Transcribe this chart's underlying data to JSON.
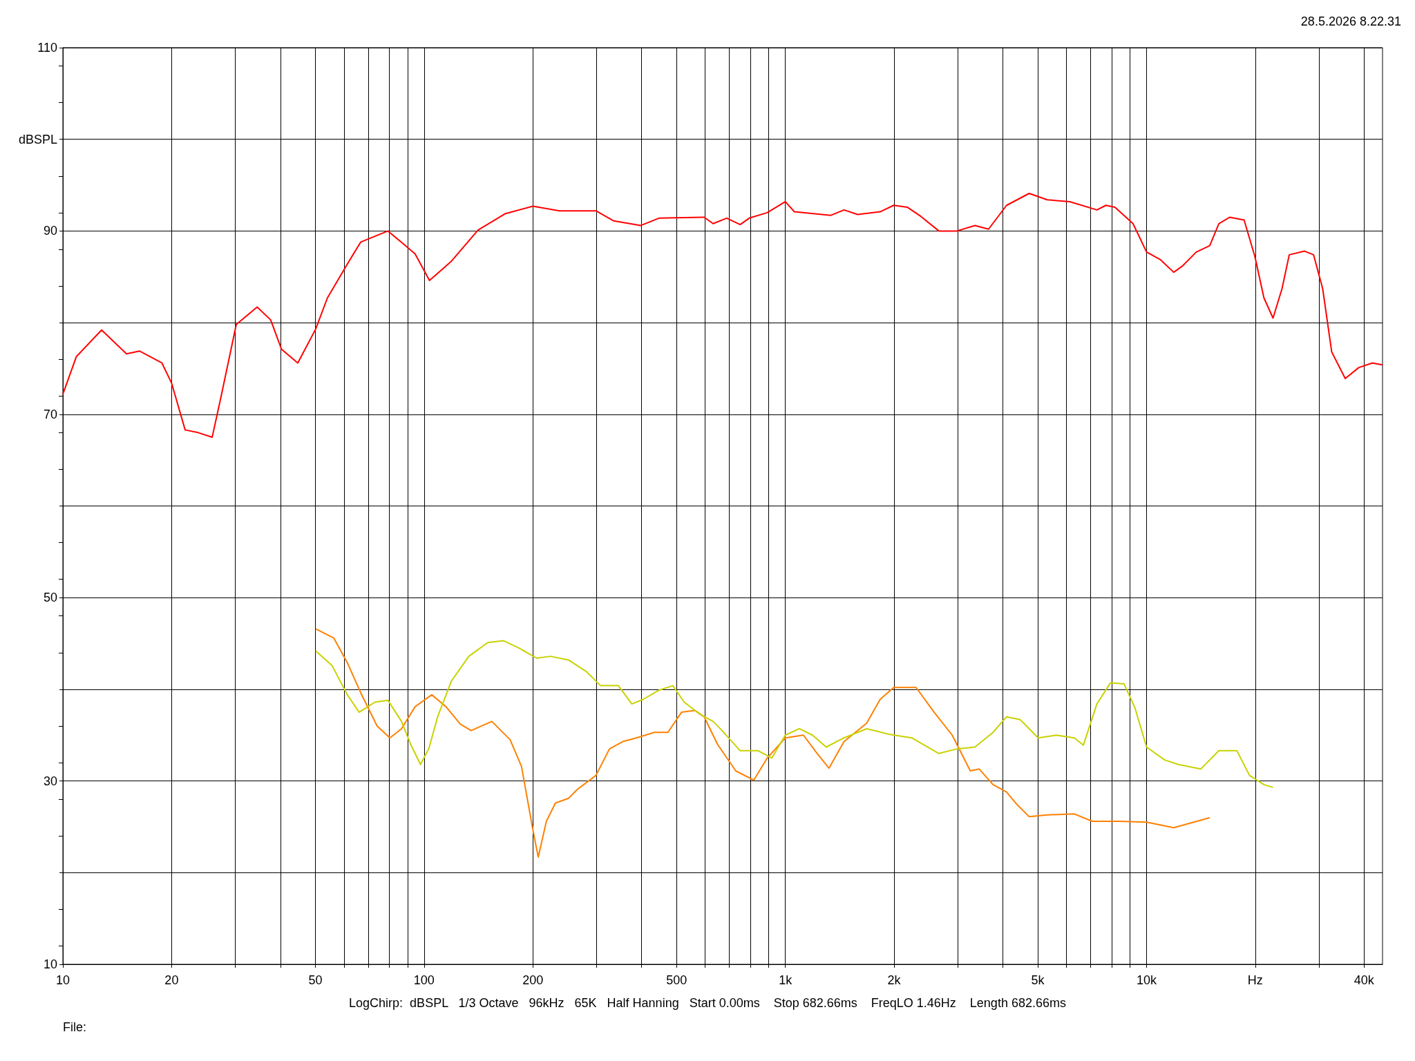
{
  "chart_data": {
    "type": "line",
    "annotations": [
      "28.5.2026 8.22.31",
      "LogChirp:  dBSPL   1/3 Octave   96kHz   65K   Half Hanning   Start 0.00ms    Stop 682.66ms    FreqLO 1.46Hz    Length 682.66ms",
      "File:"
    ],
    "xlim": [
      10,
      45000
    ],
    "xticks": [
      10,
      20,
      {
        "value": 30,
        "label": null
      },
      {
        "value": 40,
        "label": null
      },
      50,
      {
        "value": 60,
        "label": null
      },
      {
        "value": 70,
        "label": null
      },
      {
        "value": 80,
        "label": null
      },
      {
        "value": 90,
        "label": null
      },
      100,
      200,
      {
        "value": 300,
        "label": null
      },
      {
        "value": 400,
        "label": null
      },
      500,
      {
        "value": 600,
        "label": null
      },
      {
        "value": 700,
        "label": null
      },
      {
        "value": 800,
        "label": null
      },
      {
        "value": 900,
        "label": null
      },
      {
        "value": 1000,
        "label": "1k"
      },
      {
        "value": 2000,
        "label": "2k"
      },
      {
        "value": 3000,
        "label": null
      },
      {
        "value": 4000,
        "label": null
      },
      {
        "value": 5000,
        "label": "5k"
      },
      {
        "value": 6000,
        "label": null
      },
      {
        "value": 7000,
        "label": null
      },
      {
        "value": 8000,
        "label": null
      },
      {
        "value": 9000,
        "label": null
      },
      {
        "value": 10000,
        "label": "10k"
      },
      {
        "value": 20000,
        "label": "Hz"
      },
      {
        "value": 30000,
        "label": null
      },
      {
        "value": 40000,
        "label": "40k"
      }
    ],
    "ylim": [
      10,
      110
    ],
    "yticks": [
      10,
      {
        "value": 20,
        "label": null
      },
      30,
      {
        "value": 40,
        "label": null
      },
      50,
      {
        "value": 60,
        "label": null
      },
      70,
      {
        "value": 80,
        "label": null
      },
      90,
      {
        "value": 100,
        "label": "dBSPL"
      },
      110
    ],
    "log": "x",
    "grid": true,
    "marker": "none",
    "line_style": "solid",
    "series": [
      {
        "color": "#ff0000",
        "x": [
          10,
          10.9,
          12.8,
          15.0,
          16.3,
          18.8,
          20.0,
          21.8,
          23.7,
          25.9,
          27.4,
          30.2,
          34.5,
          37.6,
          40.3,
          44.7,
          50.1,
          54.0,
          61.3,
          66.8,
          79.4,
          87.6,
          94.4,
          103.5,
          119,
          141,
          168,
          200,
          237,
          299,
          335,
          398,
          447,
          596,
          631,
          688,
          750,
          794,
          891,
          1000,
          1059,
          1334,
          1454,
          1585,
          1830,
          1995,
          2175,
          2371,
          2661,
          2985,
          3350,
          3652,
          4097,
          4732,
          5309,
          6131,
          7286,
          7718,
          8175,
          9173,
          10000,
          10900,
          11890,
          12590,
          13730,
          14960,
          15850,
          16980,
          18620,
          19950,
          21130,
          22390,
          23710,
          24830,
          27380,
          29000,
          30730,
          32550,
          35480,
          38680,
          42170,
          45000
        ],
        "values": [
          72.2,
          76.3,
          79.2,
          76.6,
          76.9,
          75.6,
          73.4,
          68.3,
          68.0,
          67.5,
          71.9,
          79.8,
          81.7,
          80.3,
          77.1,
          75.6,
          79.3,
          82.7,
          86.4,
          88.8,
          90.0,
          88.6,
          87.5,
          84.6,
          86.7,
          90.1,
          91.9,
          92.7,
          92.2,
          92.2,
          91.1,
          90.6,
          91.4,
          91.5,
          90.8,
          91.4,
          90.7,
          91.4,
          92.0,
          93.2,
          92.1,
          91.7,
          92.3,
          91.8,
          92.1,
          92.8,
          92.6,
          91.6,
          90.0,
          90.0,
          90.6,
          90.2,
          92.8,
          94.1,
          93.4,
          93.2,
          92.3,
          92.8,
          92.6,
          90.8,
          87.7,
          86.9,
          85.5,
          86.2,
          87.7,
          88.4,
          90.8,
          91.5,
          91.2,
          87.2,
          82.7,
          80.5,
          83.7,
          87.4,
          87.8,
          87.4,
          83.7,
          76.8,
          73.9,
          75.1,
          75.6,
          75.4
        ]
      },
      {
        "color": "#ff8000",
        "x": [
          50.1,
          56.2,
          61.3,
          66.8,
          74.1,
          80.4,
          86.6,
          94.4,
          105,
          115,
          126,
          135,
          154,
          173,
          186,
          200,
          207,
          218,
          231,
          251,
          266,
          299,
          326,
          355,
          387,
          434,
          473,
          516,
          562,
          596,
          649,
          729,
          818,
          891,
          1000,
          1122,
          1225,
          1321,
          1454,
          1679,
          1830,
          1995,
          2301,
          2582,
          2897,
          3251,
          3442,
          3758,
          4097,
          4339,
          4732,
          5309,
          6310,
          7079,
          8414,
          10000,
          11890,
          14960
        ],
        "values": [
          46.6,
          45.6,
          42.9,
          39.6,
          36.0,
          34.7,
          35.7,
          38.1,
          39.4,
          38.1,
          36.2,
          35.5,
          36.5,
          34.5,
          31.6,
          24.7,
          21.7,
          25.6,
          27.6,
          28.1,
          29.1,
          30.6,
          33.5,
          34.3,
          34.7,
          35.3,
          35.3,
          37.5,
          37.7,
          37.0,
          34.0,
          31.1,
          30.1,
          32.5,
          34.7,
          35.0,
          33.0,
          31.4,
          34.3,
          36.3,
          38.9,
          40.2,
          40.2,
          37.5,
          35.0,
          31.1,
          31.3,
          29.6,
          28.8,
          27.6,
          26.1,
          26.3,
          26.4,
          25.6,
          25.6,
          25.5,
          24.9,
          26.0
        ]
      },
      {
        "color": "#c8d200",
        "x": [
          50.1,
          55.6,
          61.3,
          66.1,
          73.1,
          79.4,
          86.6,
          91.8,
          97.7,
          103,
          109,
          119,
          133,
          150,
          166,
          183,
          205,
          224,
          251,
          282,
          308,
          345,
          376,
          404,
          447,
          488,
          525,
          579,
          631,
          668,
          750,
          841,
          917,
          1000,
          1093,
          1189,
          1298,
          1454,
          1679,
          1936,
          2239,
          2661,
          2985,
          3350,
          3758,
          4097,
          4467,
          5012,
          5623,
          6310,
          6683,
          7286,
          7943,
          8660,
          9283,
          10000,
          11220,
          12250,
          14130,
          15850,
          17780,
          19280,
          21130,
          22390
        ],
        "values": [
          44.2,
          42.6,
          39.4,
          37.5,
          38.6,
          38.8,
          36.5,
          34.0,
          31.8,
          33.5,
          37.0,
          40.9,
          43.6,
          45.1,
          45.3,
          44.5,
          43.4,
          43.6,
          43.2,
          41.9,
          40.4,
          40.4,
          38.4,
          38.9,
          39.9,
          40.4,
          38.6,
          37.3,
          36.5,
          35.5,
          33.3,
          33.3,
          32.5,
          35.0,
          35.7,
          35.0,
          33.7,
          34.7,
          35.7,
          35.1,
          34.7,
          33.0,
          33.5,
          33.7,
          35.3,
          37.0,
          36.7,
          34.7,
          35.0,
          34.7,
          33.9,
          38.4,
          40.7,
          40.6,
          38.0,
          33.7,
          32.3,
          31.8,
          31.3,
          33.3,
          33.3,
          30.6,
          29.6,
          29.3
        ]
      }
    ]
  }
}
